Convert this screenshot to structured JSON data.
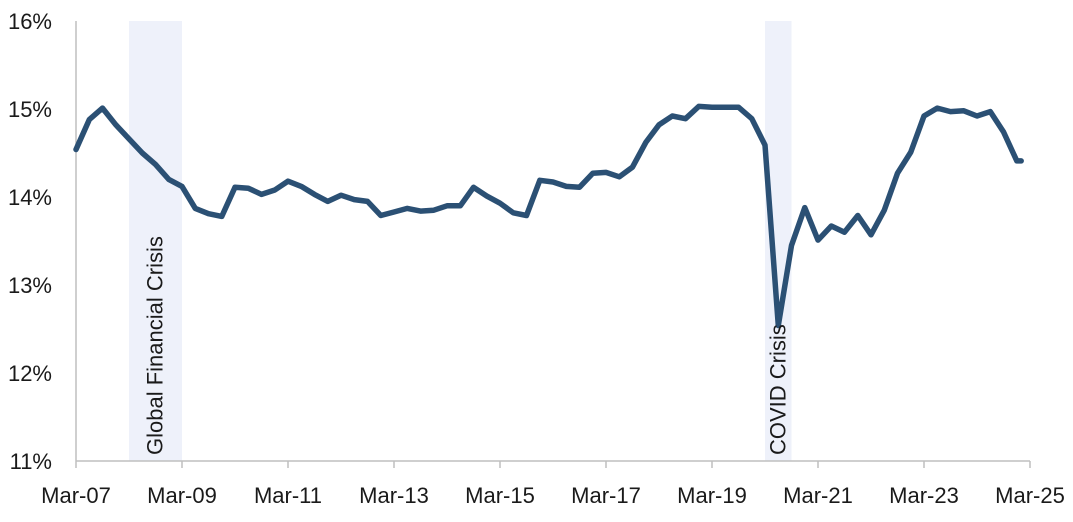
{
  "chart_data": {
    "type": "line",
    "title": "",
    "xlabel": "",
    "ylabel": "",
    "grid": false,
    "legend": "none",
    "line_color": "#2b5074",
    "band_color": "#eef1fa",
    "ylim": [
      0.11,
      0.16
    ],
    "y_ticks": [
      {
        "value": 0.11,
        "label": "11%"
      },
      {
        "value": 0.12,
        "label": "12%"
      },
      {
        "value": 0.13,
        "label": "13%"
      },
      {
        "value": 0.14,
        "label": "14%"
      },
      {
        "value": 0.15,
        "label": "15%"
      },
      {
        "value": 0.16,
        "label": "16%"
      }
    ],
    "xlim": [
      "2007-03",
      "2025-03"
    ],
    "x_ticks": [
      {
        "value": "2007-03",
        "label": "Mar-07"
      },
      {
        "value": "2009-03",
        "label": "Mar-09"
      },
      {
        "value": "2011-03",
        "label": "Mar-11"
      },
      {
        "value": "2013-03",
        "label": "Mar-13"
      },
      {
        "value": "2015-03",
        "label": "Mar-15"
      },
      {
        "value": "2017-03",
        "label": "Mar-17"
      },
      {
        "value": "2019-03",
        "label": "Mar-19"
      },
      {
        "value": "2021-03",
        "label": "Mar-21"
      },
      {
        "value": "2023-03",
        "label": "Mar-23"
      },
      {
        "value": "2025-03",
        "label": "Mar-25"
      }
    ],
    "bands": [
      {
        "label": "Global Financial Crisis",
        "start": "2008-03",
        "end": "2009-03"
      },
      {
        "label": "COVID Crisis",
        "start": "2020-03",
        "end": "2020-09"
      }
    ],
    "series": [
      {
        "points": [
          [
            "2007-03",
            0.1454
          ],
          [
            "2007-06",
            0.1488
          ],
          [
            "2007-09",
            0.1501
          ],
          [
            "2007-12",
            0.1482
          ],
          [
            "2008-03",
            0.1466
          ],
          [
            "2008-06",
            0.145
          ],
          [
            "2008-09",
            0.1437
          ],
          [
            "2008-12",
            0.142
          ],
          [
            "2009-03",
            0.1412
          ],
          [
            "2009-06",
            0.1387
          ],
          [
            "2009-09",
            0.1381
          ],
          [
            "2009-12",
            0.1378
          ],
          [
            "2010-03",
            0.1411
          ],
          [
            "2010-06",
            0.141
          ],
          [
            "2010-09",
            0.1403
          ],
          [
            "2010-12",
            0.1408
          ],
          [
            "2011-03",
            0.1418
          ],
          [
            "2011-06",
            0.1412
          ],
          [
            "2011-09",
            0.1403
          ],
          [
            "2011-12",
            0.1395
          ],
          [
            "2012-03",
            0.1402
          ],
          [
            "2012-06",
            0.1397
          ],
          [
            "2012-09",
            0.1395
          ],
          [
            "2012-12",
            0.1379
          ],
          [
            "2013-03",
            0.1383
          ],
          [
            "2013-06",
            0.1387
          ],
          [
            "2013-09",
            0.1384
          ],
          [
            "2013-12",
            0.1385
          ],
          [
            "2014-03",
            0.139
          ],
          [
            "2014-06",
            0.139
          ],
          [
            "2014-09",
            0.1411
          ],
          [
            "2014-12",
            0.1401
          ],
          [
            "2015-03",
            0.1393
          ],
          [
            "2015-06",
            0.1382
          ],
          [
            "2015-09",
            0.1379
          ],
          [
            "2015-12",
            0.1419
          ],
          [
            "2016-03",
            0.1417
          ],
          [
            "2016-06",
            0.1412
          ],
          [
            "2016-09",
            0.1411
          ],
          [
            "2016-12",
            0.1427
          ],
          [
            "2017-03",
            0.1428
          ],
          [
            "2017-06",
            0.1423
          ],
          [
            "2017-09",
            0.1434
          ],
          [
            "2017-12",
            0.1462
          ],
          [
            "2018-03",
            0.1482
          ],
          [
            "2018-06",
            0.1492
          ],
          [
            "2018-09",
            0.1489
          ],
          [
            "2018-12",
            0.1503
          ],
          [
            "2019-03",
            0.1502
          ],
          [
            "2019-06",
            0.1502
          ],
          [
            "2019-09",
            0.1502
          ],
          [
            "2019-12",
            0.1489
          ],
          [
            "2020-03",
            0.1459
          ],
          [
            "2020-06",
            0.1254
          ],
          [
            "2020-09",
            0.1345
          ],
          [
            "2020-12",
            0.1388
          ],
          [
            "2021-03",
            0.1351
          ],
          [
            "2021-06",
            0.1367
          ],
          [
            "2021-09",
            0.136
          ],
          [
            "2021-12",
            0.1379
          ],
          [
            "2022-03",
            0.1357
          ],
          [
            "2022-06",
            0.1385
          ],
          [
            "2022-09",
            0.1427
          ],
          [
            "2022-12",
            0.1451
          ],
          [
            "2023-03",
            0.1492
          ],
          [
            "2023-06",
            0.1501
          ],
          [
            "2023-09",
            0.1497
          ],
          [
            "2023-12",
            0.1498
          ],
          [
            "2024-03",
            0.1492
          ],
          [
            "2024-06",
            0.1497
          ],
          [
            "2024-09",
            0.1474
          ],
          [
            "2024-12",
            0.1441
          ],
          [
            "2025-01",
            0.1441
          ]
        ]
      }
    ]
  }
}
